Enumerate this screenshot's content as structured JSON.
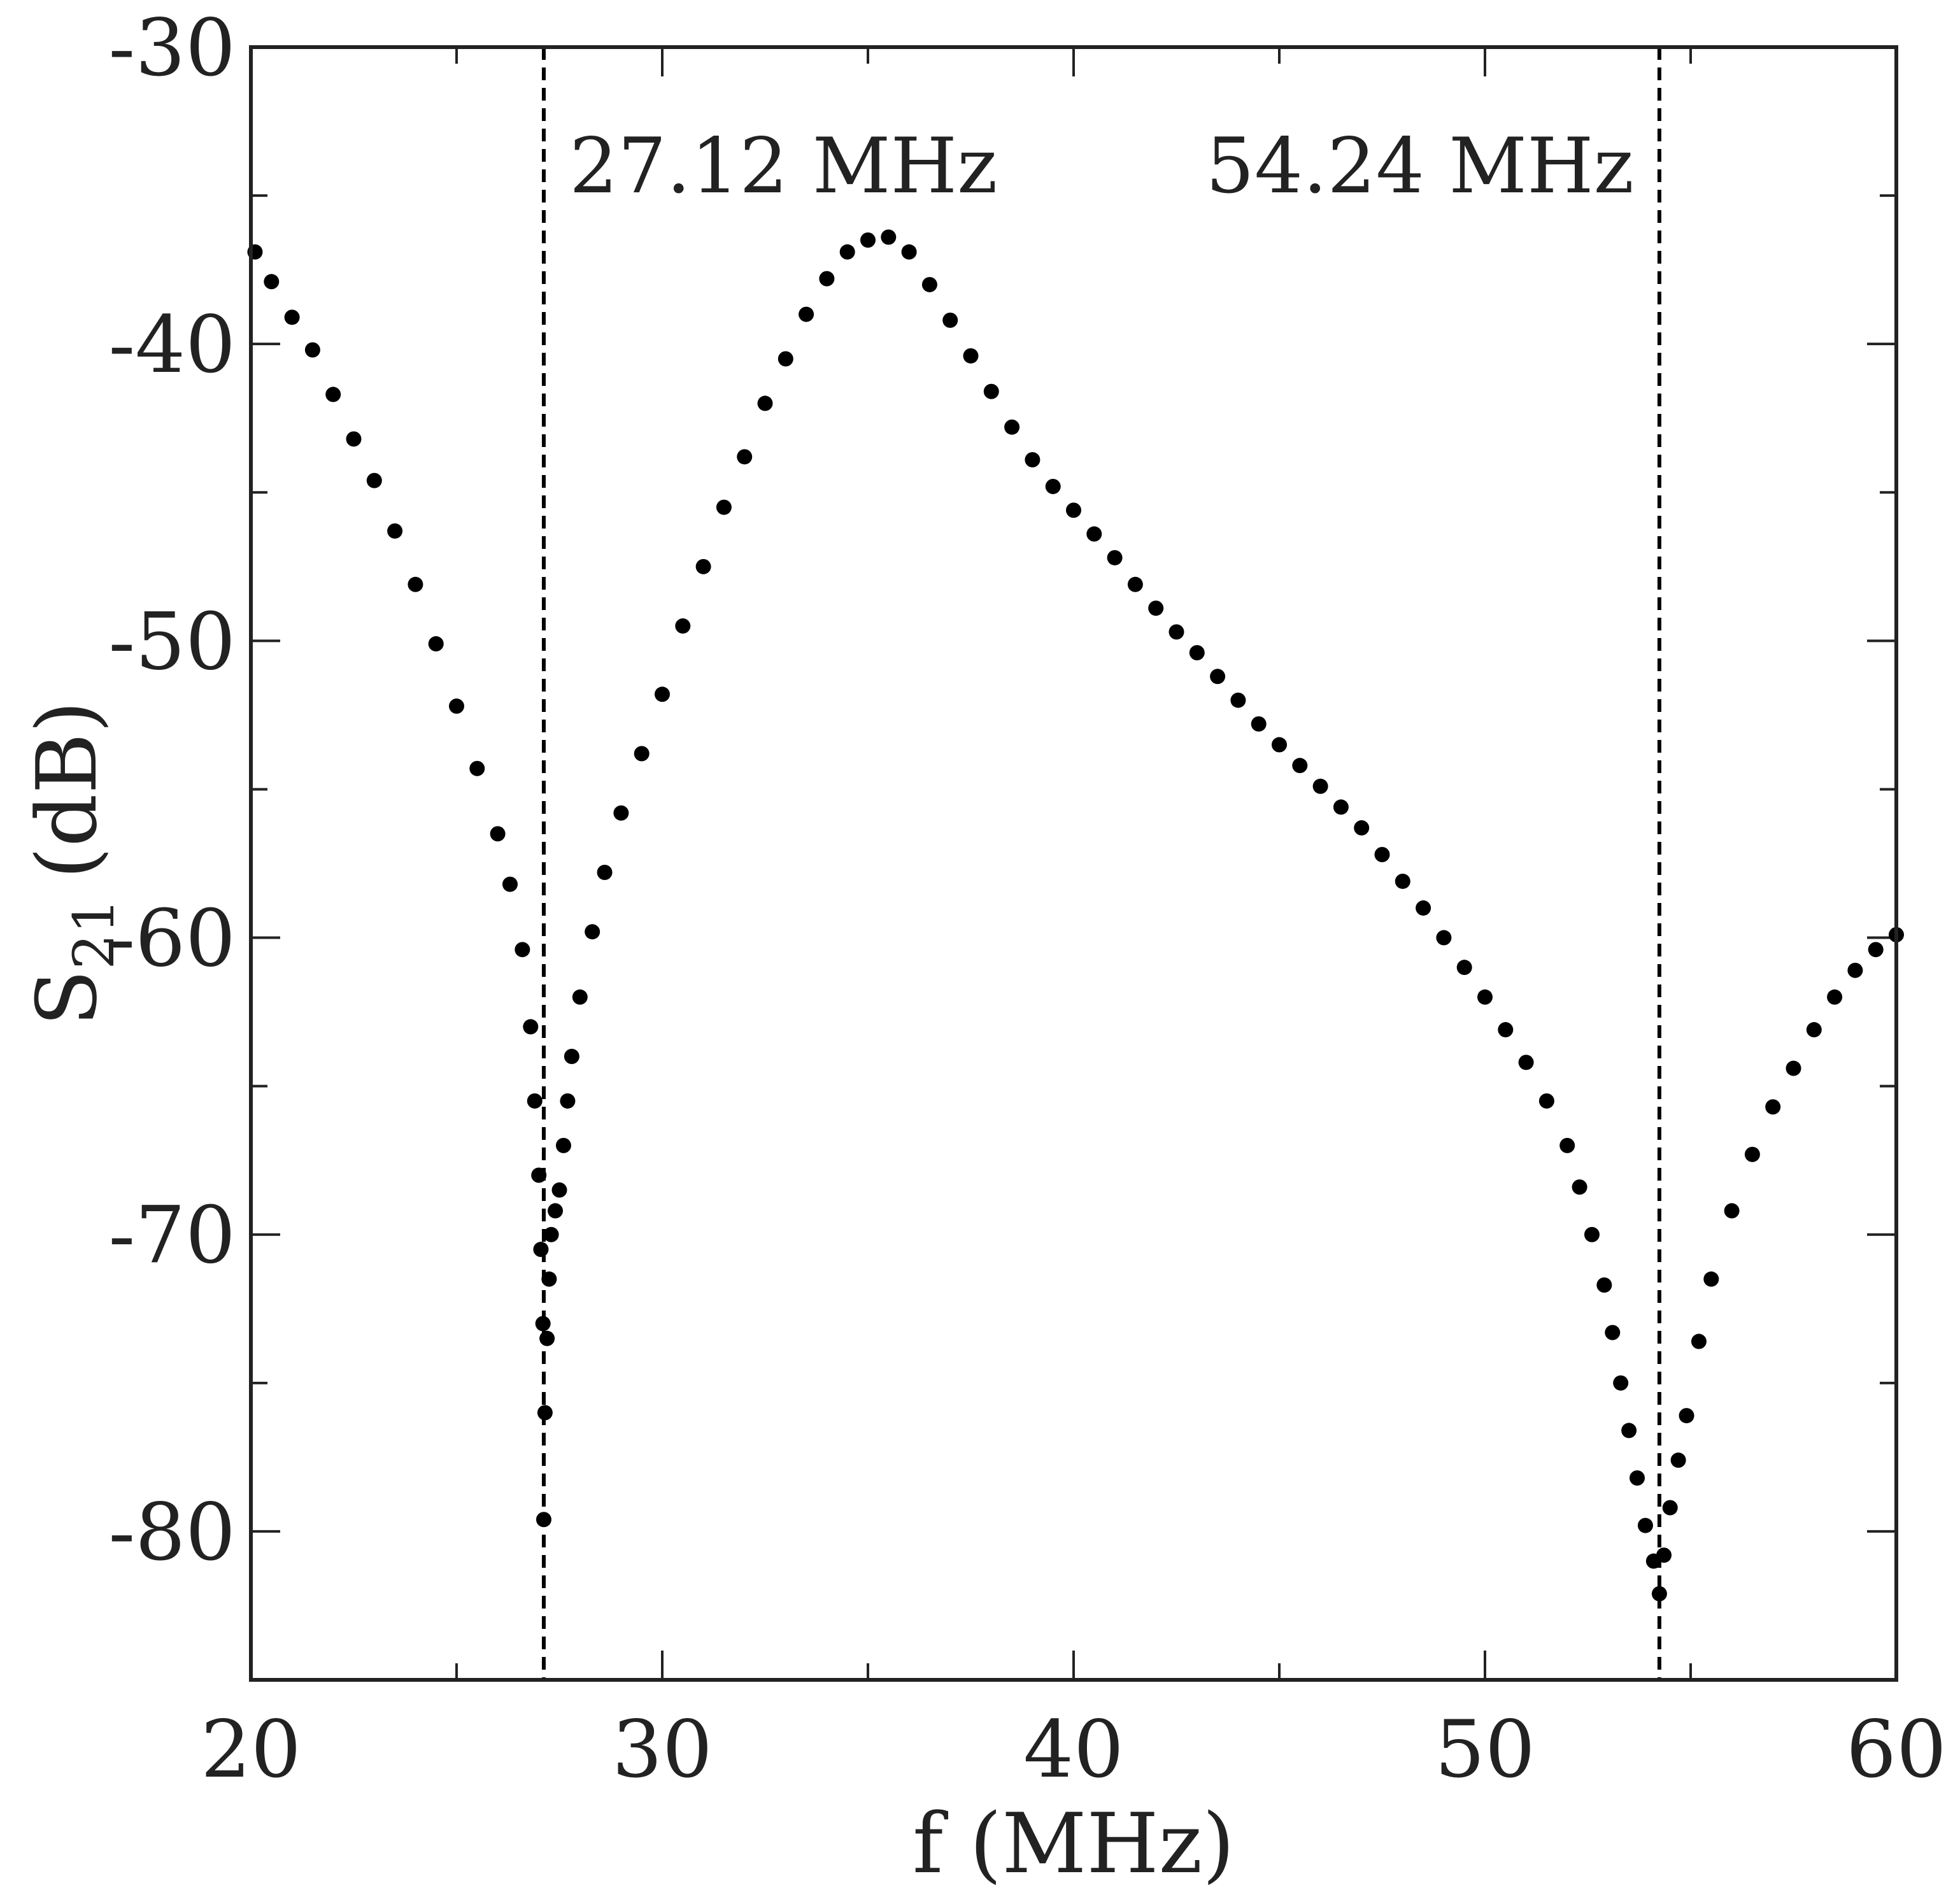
{
  "chart_data": {
    "type": "scatter",
    "title": "",
    "xlabel": "f (MHz)",
    "ylabel_main": "S",
    "ylabel_sub": "21",
    "ylabel_unit": "(dB)",
    "xlim": [
      20,
      60
    ],
    "ylim": [
      -85,
      -30
    ],
    "xticks": [
      20,
      30,
      40,
      50,
      60
    ],
    "xtick_labels": [
      "20",
      "30",
      "40",
      "50",
      "60"
    ],
    "yticks": [
      -30,
      -40,
      -50,
      -60,
      -70,
      -80
    ],
    "ytick_labels": [
      "-30",
      "-40",
      "-50",
      "-60",
      "-70",
      "-80"
    ],
    "minor_xticks": [
      25,
      35,
      45,
      55
    ],
    "minor_yticks": [
      -35,
      -45,
      -55,
      -65,
      -75
    ],
    "grid": false,
    "marker_color": "#000000",
    "reference_lines": [
      {
        "x": 27.12,
        "label": "27.12 MHz",
        "label_side": "right"
      },
      {
        "x": 54.24,
        "label": "54.24 MHz",
        "label_side": "left"
      }
    ],
    "series": [
      {
        "x": [
          20.1,
          20.5,
          21.0,
          21.5,
          22.0,
          22.5,
          23.0,
          23.5,
          24.0,
          24.5,
          25.0,
          25.5,
          26.0,
          26.3,
          26.6,
          26.8,
          26.9,
          27.0,
          27.05,
          27.1,
          27.12,
          27.15,
          27.2,
          27.25,
          27.3,
          27.4,
          27.5,
          27.6,
          27.7,
          27.8,
          28.0,
          28.3,
          28.6,
          29.0,
          29.5,
          30.0,
          30.5,
          31.0,
          31.5,
          32.0,
          32.5,
          33.0,
          33.5,
          34.0,
          34.5,
          35.0,
          35.5,
          36.0,
          36.5,
          37.0,
          37.5,
          38.0,
          38.5,
          39.0,
          39.5,
          40.0,
          40.5,
          41.0,
          41.5,
          42.0,
          42.5,
          43.0,
          43.5,
          44.0,
          44.5,
          45.0,
          45.5,
          46.0,
          46.5,
          47.0,
          47.5,
          48.0,
          48.5,
          49.0,
          49.5,
          50.0,
          50.5,
          51.0,
          51.5,
          52.0,
          52.3,
          52.6,
          52.9,
          53.1,
          53.3,
          53.5,
          53.7,
          53.9,
          54.1,
          54.24,
          54.35,
          54.5,
          54.7,
          54.9,
          55.2,
          55.5,
          56.0,
          56.5,
          57.0,
          57.5,
          58.0,
          58.5,
          59.0,
          59.5,
          60.0
        ],
        "y": [
          -36.9,
          -37.9,
          -39.1,
          -40.2,
          -41.7,
          -43.2,
          -44.6,
          -46.3,
          -48.1,
          -50.1,
          -52.2,
          -54.3,
          -56.5,
          -58.2,
          -60.4,
          -63.0,
          -65.5,
          -68.0,
          -70.5,
          -73.0,
          -79.6,
          -76.0,
          -73.5,
          -71.5,
          -70.0,
          -69.2,
          -68.5,
          -67.0,
          -65.5,
          -64.0,
          -62.0,
          -59.8,
          -57.8,
          -55.8,
          -53.8,
          -51.8,
          -49.5,
          -47.5,
          -45.5,
          -43.8,
          -42.0,
          -40.5,
          -39.0,
          -37.8,
          -36.9,
          -36.5,
          -36.4,
          -36.9,
          -38.0,
          -39.2,
          -40.4,
          -41.6,
          -42.8,
          -43.9,
          -44.8,
          -45.6,
          -46.4,
          -47.2,
          -48.1,
          -48.9,
          -49.7,
          -50.4,
          -51.2,
          -52.0,
          -52.8,
          -53.5,
          -54.2,
          -54.9,
          -55.6,
          -56.3,
          -57.2,
          -58.1,
          -59.0,
          -60.0,
          -61.0,
          -62.0,
          -63.1,
          -64.2,
          -65.5,
          -67.0,
          -68.4,
          -70.0,
          -71.7,
          -73.3,
          -75.0,
          -76.6,
          -78.2,
          -79.8,
          -81.0,
          -82.1,
          -80.8,
          -79.2,
          -77.6,
          -76.1,
          -73.6,
          -71.5,
          -69.2,
          -67.3,
          -65.7,
          -64.4,
          -63.1,
          -62.0,
          -61.1,
          -60.4,
          -59.9
        ]
      }
    ]
  }
}
